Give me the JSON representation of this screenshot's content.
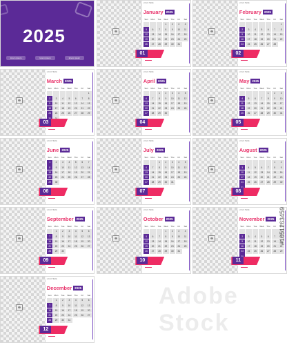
{
  "cover": {
    "year": "2025",
    "footer": [
      "lorem ipsum",
      "lorem ipsum",
      "lorem ipsum"
    ]
  },
  "year_badge": "2025",
  "logo_text": "LOGO HERE",
  "notes_text": "lorem ipsum dolor",
  "days_of_week": [
    "Sun",
    "Mon",
    "Tue",
    "Wed",
    "Thu",
    "Fri",
    "Sat"
  ],
  "months": [
    {
      "name": "January",
      "num": "01",
      "start": 3,
      "days": 31
    },
    {
      "name": "February",
      "num": "02",
      "start": 6,
      "days": 28
    },
    {
      "name": "March",
      "num": "03",
      "start": 6,
      "days": 31
    },
    {
      "name": "April",
      "num": "04",
      "start": 2,
      "days": 30
    },
    {
      "name": "May",
      "num": "05",
      "start": 4,
      "days": 31
    },
    {
      "name": "June",
      "num": "06",
      "start": 0,
      "days": 30
    },
    {
      "name": "July",
      "num": "07",
      "start": 2,
      "days": 31
    },
    {
      "name": "August",
      "num": "08",
      "start": 5,
      "days": 31
    },
    {
      "name": "September",
      "num": "09",
      "start": 1,
      "days": 30
    },
    {
      "name": "October",
      "num": "10",
      "start": 3,
      "days": 31
    },
    {
      "name": "November",
      "num": "11",
      "start": 6,
      "days": 30
    },
    {
      "name": "December",
      "num": "12",
      "start": 1,
      "days": 31
    }
  ],
  "watermark": "Adobe Stock",
  "stock_id": "#1051263459",
  "colors": {
    "primary": "#5b2a97",
    "accent": "#ee2b63"
  }
}
